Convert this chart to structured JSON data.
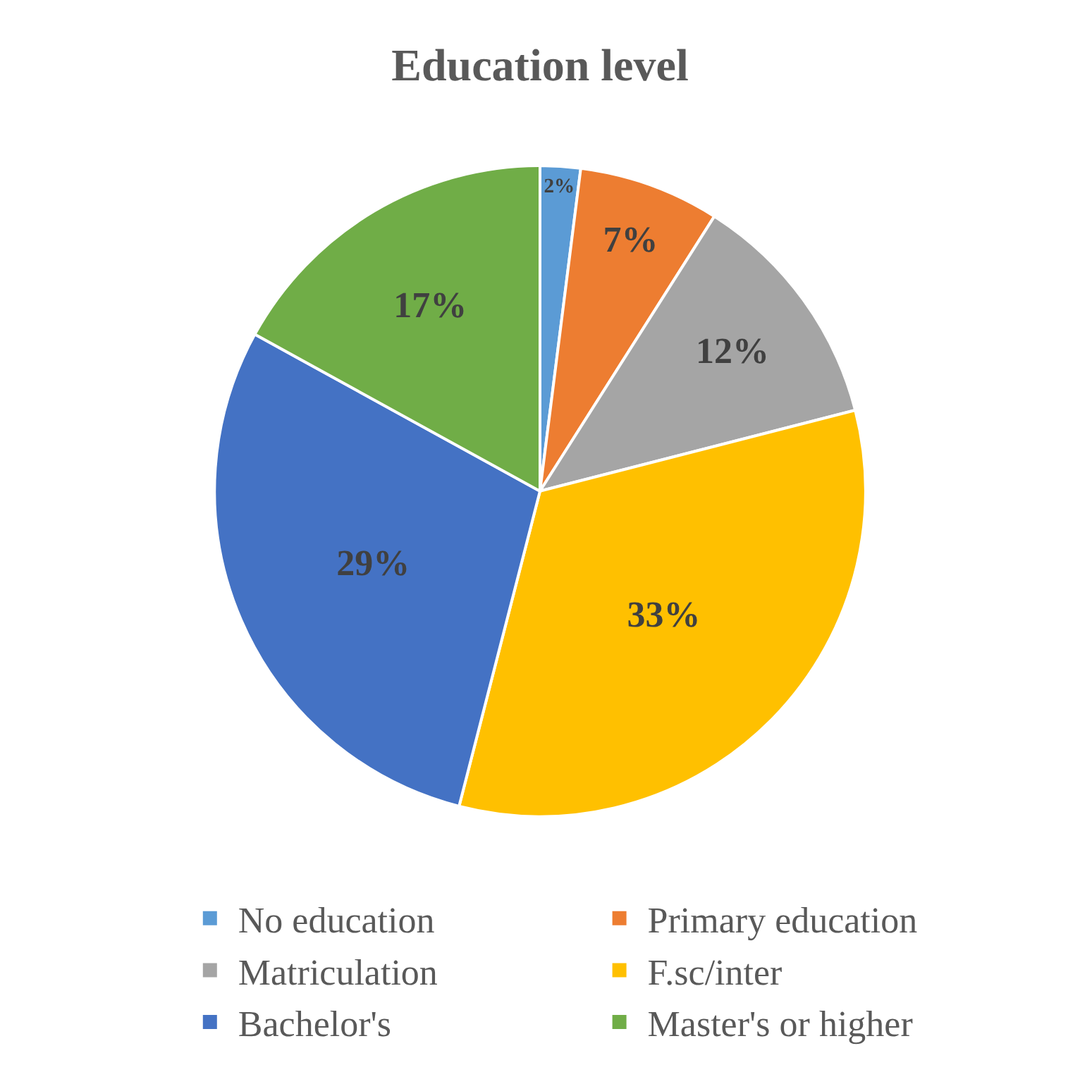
{
  "chart_data": {
    "type": "pie",
    "title": "Education level",
    "categories": [
      "No education",
      "Primary education",
      "Matriculation",
      "F.sc/inter",
      "Bachelor's",
      "Master's or higher"
    ],
    "values": [
      2,
      7,
      12,
      33,
      29,
      17
    ],
    "colors": [
      "#5b9bd5",
      "#ed7d31",
      "#a5a5a5",
      "#ffc000",
      "#4472c4",
      "#70ad47"
    ],
    "value_labels": [
      "2%",
      "7%",
      "12%",
      "33%",
      "29%",
      "17%"
    ],
    "legend": "bottom"
  }
}
